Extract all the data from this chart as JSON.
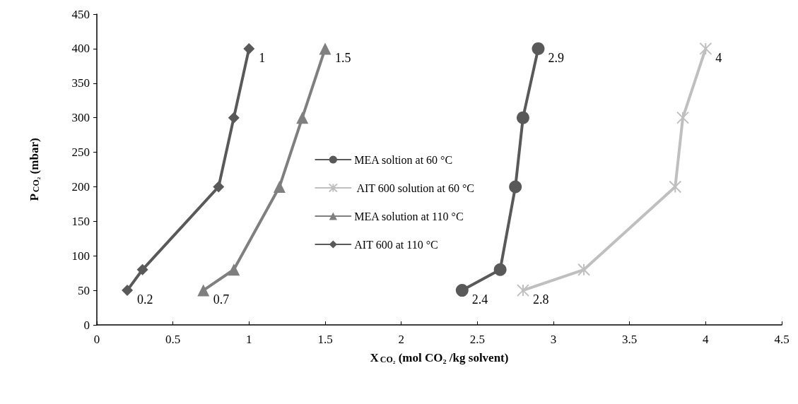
{
  "chart_data": {
    "type": "line",
    "xlabel": "X$_{CO₂}$ (mol CO₂ /kg solvent)",
    "ylabel": "P$_{CO₂}$ (mbar)",
    "xlim": [
      0,
      4.5
    ],
    "xticks": [
      0,
      0.5,
      1,
      1.5,
      2,
      2.5,
      3,
      3.5,
      4,
      4.5
    ],
    "ylim": [
      0,
      450
    ],
    "yticks": [
      0,
      50,
      100,
      150,
      200,
      250,
      300,
      350,
      400,
      450
    ],
    "grid": false,
    "legend": "center",
    "line_style": "solid",
    "series": [
      {
        "name": "MEA soltion at 60 °C",
        "color": "#595959",
        "marker": "circle",
        "x": [
          2.4,
          2.65,
          2.75,
          2.8,
          2.9
        ],
        "values": [
          50,
          80,
          200,
          300,
          400
        ]
      },
      {
        "name": " AIT 600 solution at 60 °C",
        "color": "#bfbfbf",
        "marker": "cross",
        "x": [
          2.8,
          3.2,
          3.8,
          3.85,
          4
        ],
        "values": [
          50,
          80,
          200,
          300,
          400
        ]
      },
      {
        "name": "MEA solution at 110 °C",
        "color": "#7f7f7f",
        "marker": "triangle",
        "x": [
          0.7,
          0.9,
          1.2,
          1.35,
          1.5
        ],
        "values": [
          50,
          80,
          200,
          300,
          400
        ]
      },
      {
        "name": "AIT 600 at 110 °C",
        "color": "#595959",
        "marker": "diamond",
        "x": [
          0.2,
          0.3,
          0.8,
          0.9,
          1
        ],
        "values": [
          50,
          80,
          200,
          300,
          400
        ]
      }
    ],
    "annotations": [
      {
        "text": "1",
        "x": 1,
        "y": 400
      },
      {
        "text": "1.5",
        "x": 1.5,
        "y": 400
      },
      {
        "text": "2.9",
        "x": 2.9,
        "y": 400
      },
      {
        "text": "4",
        "x": 4,
        "y": 400
      },
      {
        "text": "0.2",
        "x": 0.2,
        "y": 50
      },
      {
        "text": "0.7",
        "x": 0.7,
        "y": 50
      },
      {
        "text": "2.4",
        "x": 2.4,
        "y": 50
      },
      {
        "text": "2.8",
        "x": 2.8,
        "y": 50
      }
    ]
  }
}
